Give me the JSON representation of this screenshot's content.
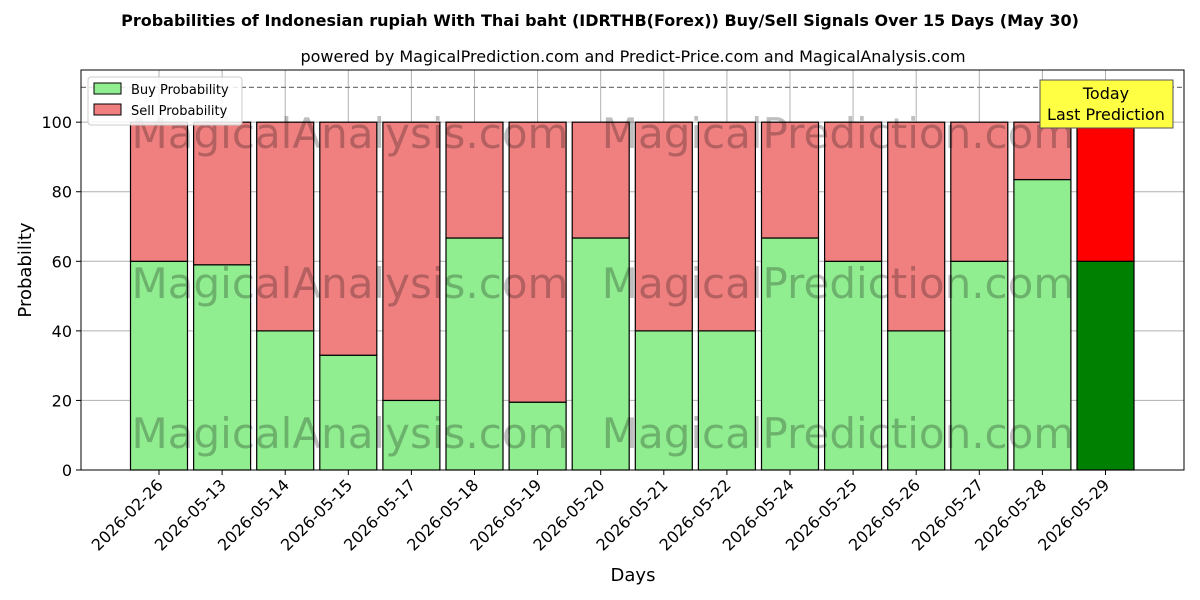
{
  "chart_data": {
    "type": "bar",
    "title": "Probabilities of Indonesian rupiah With Thai baht (IDRTHB(Forex)) Buy/Sell Signals Over 15 Days (May 30)",
    "subtitle": "powered by MagicalPrediction.com and Predict-Price.com and MagicalAnalysis.com",
    "xlabel": "Days",
    "ylabel": "Probability",
    "ylim": [
      0,
      115
    ],
    "yticks": [
      0,
      20,
      40,
      60,
      80,
      100
    ],
    "grid": true,
    "legend_position": "top-left",
    "reference_line": 110,
    "categories": [
      "2026-02-26",
      "2026-05-13",
      "2026-05-14",
      "2026-05-15",
      "2026-05-17",
      "2026-05-18",
      "2026-05-19",
      "2026-05-20",
      "2026-05-21",
      "2026-05-22",
      "2026-05-24",
      "2026-05-25",
      "2026-05-26",
      "2026-05-27",
      "2026-05-28",
      "2026-05-29"
    ],
    "series": [
      {
        "name": "Buy Probability",
        "color": "#90ee90",
        "values": [
          60,
          59,
          40,
          33,
          20,
          66.7,
          19.5,
          66.7,
          40,
          40,
          66.7,
          60,
          40,
          60,
          83.5,
          60
        ]
      },
      {
        "name": "Sell Probability",
        "color": "#f08080",
        "values": [
          40,
          41,
          60,
          67,
          80,
          33.3,
          80.5,
          33.3,
          60,
          60,
          33.3,
          40,
          60,
          40,
          16.5,
          40
        ]
      }
    ],
    "highlight": {
      "index": 15,
      "buy_color": "#008000",
      "sell_color": "#ff0000"
    },
    "annotation": {
      "lines": [
        "Today",
        "Last Prediction"
      ],
      "color": "#ffff44"
    },
    "watermarks": [
      "MagicalAnalysis.com",
      "MagicalPrediction.com"
    ]
  }
}
